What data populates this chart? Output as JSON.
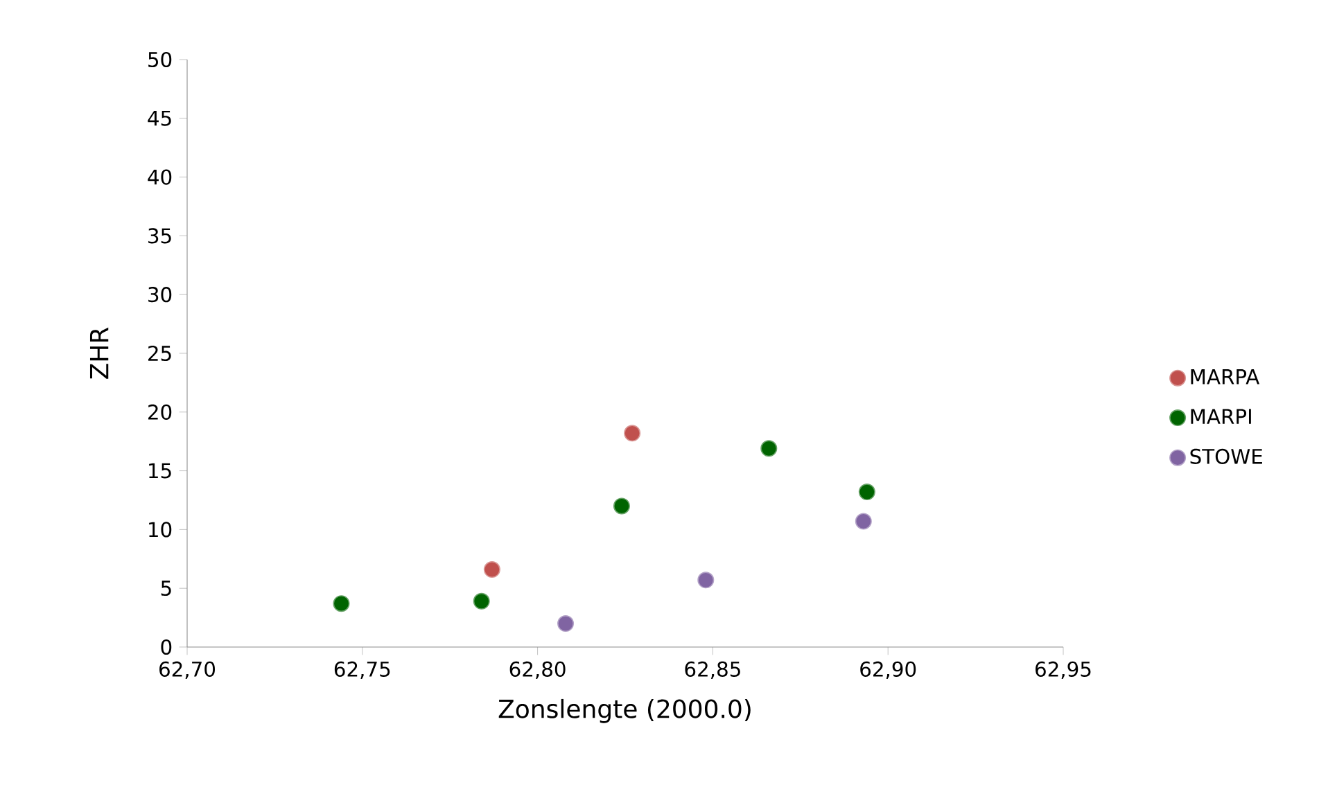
{
  "chart_data": {
    "type": "scatter",
    "xlabel": "Zonslengte (2000.0)",
    "ylabel": "ZHR",
    "xlim": [
      62.7,
      62.95
    ],
    "xticks": [
      {
        "value": 62.7,
        "label": "62,70"
      },
      {
        "value": 62.75,
        "label": "62,75"
      },
      {
        "value": 62.8,
        "label": "62,80"
      },
      {
        "value": 62.85,
        "label": "62,85"
      },
      {
        "value": 62.9,
        "label": "62,90"
      },
      {
        "value": 62.95,
        "label": "62,95"
      }
    ],
    "ylim": [
      0,
      50
    ],
    "yticks": [
      0,
      5,
      10,
      15,
      20,
      25,
      30,
      35,
      40,
      45,
      50
    ],
    "series": [
      {
        "name": "MARPA",
        "color": "#c0504d",
        "x": [
          62.787,
          62.827
        ],
        "values": [
          6.6,
          18.2
        ]
      },
      {
        "name": "MARPI",
        "color": "#006400",
        "x": [
          62.744,
          62.784,
          62.824,
          62.866,
          62.894
        ],
        "values": [
          3.7,
          3.9,
          12.0,
          16.9,
          13.2
        ]
      },
      {
        "name": "STOWE",
        "color": "#8064a2",
        "x": [
          62.808,
          62.848,
          62.893
        ],
        "values": [
          2.0,
          5.7,
          10.7
        ]
      }
    ],
    "marker": "circle",
    "legend": "right",
    "grid": false
  }
}
